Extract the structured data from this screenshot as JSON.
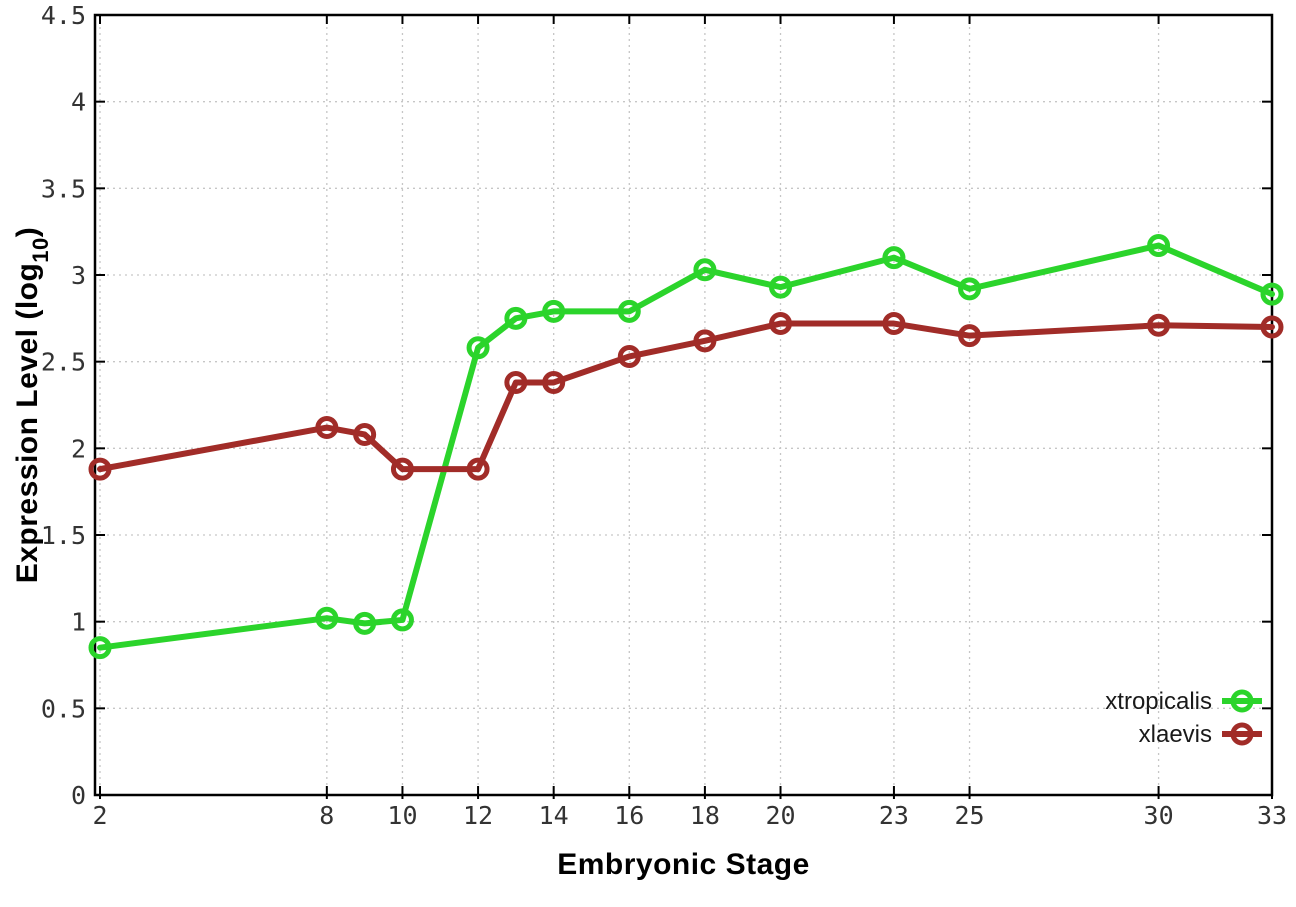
{
  "chart_data": {
    "type": "line",
    "title": "",
    "xlabel": "Embryonic Stage",
    "ylabel": {
      "prefix": "Expression Level (log",
      "subscript": "10",
      "suffix": ")"
    },
    "x": [
      2,
      8,
      9,
      10,
      12,
      13,
      14,
      16,
      18,
      20,
      23,
      25,
      30,
      33
    ],
    "xtick_values": [
      2,
      8,
      10,
      12,
      14,
      16,
      18,
      20,
      23,
      25,
      30,
      33
    ],
    "xtick_labels": [
      "2",
      "8",
      "10",
      "12",
      "14",
      "16",
      "18",
      "20",
      "23",
      "25",
      "30",
      "33"
    ],
    "ytick_values": [
      0,
      0.5,
      1,
      1.5,
      2,
      2.5,
      3,
      3.5,
      4,
      4.5
    ],
    "ytick_labels": [
      "0",
      "0.5",
      "1",
      "1.5",
      "2",
      "2.5",
      "3",
      "3.5",
      "4",
      "4.5"
    ],
    "xlim": [
      2,
      33
    ],
    "ylim": [
      0,
      4.5
    ],
    "grid": true,
    "legend_position": "inside bottom-right",
    "series": [
      {
        "name": "xtropicalis",
        "color": "#2bd42b",
        "values": [
          0.85,
          1.02,
          0.99,
          1.01,
          2.58,
          2.75,
          2.79,
          2.79,
          3.03,
          2.93,
          3.1,
          2.92,
          3.17,
          2.89
        ]
      },
      {
        "name": "xlaevis",
        "color": "#a12c28",
        "values": [
          1.88,
          2.12,
          2.08,
          1.88,
          1.88,
          2.38,
          2.38,
          2.53,
          2.62,
          2.72,
          2.72,
          2.65,
          2.71,
          2.7
        ]
      }
    ],
    "colors": {
      "grid": "#c6c6c6",
      "border": "#000000",
      "tick": "#000000",
      "tick_label": "#333333",
      "legend_text": "#1a1a1a"
    }
  }
}
